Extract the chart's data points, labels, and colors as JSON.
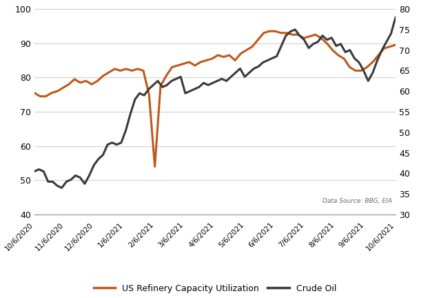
{
  "background_color": "#ffffff",
  "grid_color": "#d0d0d0",
  "x_labels": [
    "10/6/2020",
    "11/6/2020",
    "12/6/2020",
    "1/6/2021",
    "2/6/2021",
    "3/6/2021",
    "4/6/2021",
    "5/6/2021",
    "6/6/2021",
    "7/6/2021",
    "8/6/2021",
    "9/6/2021",
    "10/6/2021"
  ],
  "refinery_color": "#c0581a",
  "crude_color": "#3a3a3a",
  "refinery_linewidth": 2.2,
  "crude_linewidth": 2.2,
  "ylim_left": [
    40,
    100
  ],
  "ylim_right": [
    30,
    80
  ],
  "yticks_left": [
    40,
    50,
    60,
    70,
    80,
    90,
    100
  ],
  "yticks_right": [
    30,
    35,
    40,
    45,
    50,
    55,
    60,
    65,
    70,
    75,
    80
  ],
  "datasource_text": "Data Source: BBG, EIA",
  "legend_refinery": "US Refinery Capacity Utilization",
  "legend_crude": "Crude Oil",
  "refinery_x": [
    0,
    1,
    2,
    3,
    4,
    5,
    6,
    7,
    8,
    9,
    10,
    11,
    12,
    13,
    14,
    15,
    16,
    17,
    18,
    19,
    20,
    21,
    22,
    23,
    24,
    25,
    26,
    27,
    28,
    29,
    30,
    31,
    32,
    33,
    34,
    35,
    36,
    37,
    38,
    39,
    40,
    41,
    42,
    43,
    44,
    45,
    46,
    47,
    48,
    49,
    50,
    51,
    52,
    53,
    54,
    55,
    56,
    57,
    58,
    59,
    60,
    61,
    62,
    63
  ],
  "refinery_data": [
    75.5,
    74.5,
    74.5,
    75.5,
    76.0,
    77.0,
    78.0,
    79.5,
    78.5,
    79.0,
    78.0,
    79.0,
    80.5,
    81.5,
    82.5,
    82.0,
    82.5,
    82.0,
    82.5,
    82.0,
    75.0,
    54.0,
    77.5,
    80.5,
    83.0,
    83.5,
    84.0,
    84.5,
    83.5,
    84.5,
    85.0,
    85.5,
    86.5,
    86.0,
    86.5,
    85.0,
    87.0,
    88.0,
    89.0,
    91.0,
    93.0,
    93.5,
    93.5,
    93.0,
    93.0,
    92.5,
    92.5,
    91.5,
    92.0,
    92.5,
    91.5,
    90.0,
    88.0,
    86.5,
    85.5,
    83.0,
    82.0,
    82.0,
    83.0,
    84.5,
    86.5,
    88.5,
    89.0,
    89.5
  ],
  "crude_x": [
    0,
    1,
    2,
    3,
    4,
    5,
    6,
    7,
    8,
    9,
    10,
    11,
    12,
    13,
    14,
    15,
    16,
    17,
    18,
    19,
    20,
    21,
    22,
    23,
    24,
    25,
    26,
    27,
    28,
    29,
    30,
    31,
    32,
    33,
    34,
    35,
    36,
    37,
    38,
    39,
    40,
    41,
    42,
    43,
    44,
    45,
    46,
    47,
    48,
    49,
    50,
    51,
    52,
    53,
    54,
    55,
    56,
    57,
    58,
    59,
    60,
    61,
    62,
    63,
    64,
    65,
    66,
    67,
    68,
    69,
    70,
    71,
    72,
    73,
    74,
    75,
    76,
    77,
    78,
    79
  ],
  "crude_data": [
    40.5,
    41.0,
    40.5,
    38.0,
    38.0,
    37.0,
    36.5,
    38.0,
    38.5,
    39.5,
    39.0,
    37.5,
    39.5,
    42.0,
    43.5,
    44.5,
    47.0,
    47.5,
    47.0,
    47.5,
    50.5,
    54.5,
    58.0,
    59.5,
    59.0,
    60.5,
    61.5,
    62.5,
    61.0,
    61.5,
    62.5,
    63.0,
    63.5,
    59.5,
    60.0,
    60.5,
    61.0,
    62.0,
    61.5,
    62.0,
    62.5,
    63.0,
    62.5,
    63.5,
    64.5,
    65.5,
    63.5,
    64.5,
    65.5,
    66.0,
    67.0,
    67.5,
    68.0,
    68.5,
    71.0,
    73.5,
    74.5,
    75.0,
    73.5,
    72.5,
    70.5,
    71.5,
    72.0,
    73.5,
    72.5,
    73.0,
    71.0,
    71.5,
    69.5,
    70.0,
    68.0,
    67.0,
    65.0,
    62.5,
    64.5,
    67.5,
    70.0,
    72.0,
    74.0,
    78.0
  ]
}
